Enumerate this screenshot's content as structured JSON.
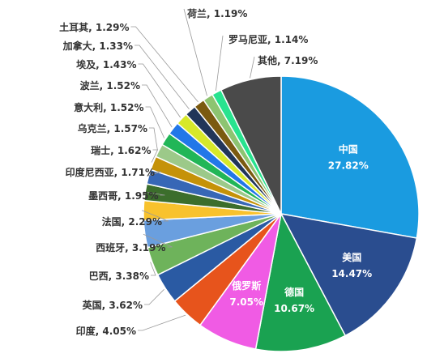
{
  "chart_data": {
    "type": "pie",
    "title": "",
    "legend": "none",
    "value_unit": "%",
    "slices": [
      {
        "name": "中国",
        "value": 27.82,
        "color": "#1a9be0",
        "label_pos": "inside"
      },
      {
        "name": "美国",
        "value": 14.47,
        "color": "#2a4d8f",
        "label_pos": "inside"
      },
      {
        "name": "德国",
        "value": 10.67,
        "color": "#1aa251",
        "label_pos": "inside"
      },
      {
        "name": "俄罗斯",
        "value": 7.05,
        "color": "#f05be4",
        "label_pos": "inside"
      },
      {
        "name": "印度",
        "value": 4.05,
        "color": "#e7541c",
        "label_pos": "outside"
      },
      {
        "name": "英国",
        "value": 3.62,
        "color": "#2a5aa3",
        "label_pos": "outside"
      },
      {
        "name": "巴西",
        "value": 3.38,
        "color": "#6eb35b",
        "label_pos": "outside"
      },
      {
        "name": "西班牙",
        "value": 3.19,
        "color": "#6a9fdf",
        "label_pos": "outside"
      },
      {
        "name": "法国",
        "value": 2.29,
        "color": "#f8c22d",
        "label_pos": "outside"
      },
      {
        "name": "墨西哥",
        "value": 1.95,
        "color": "#3c6e2c",
        "label_pos": "outside"
      },
      {
        "name": "印度尼西亚",
        "value": 1.71,
        "color": "#3767b6",
        "label_pos": "outside"
      },
      {
        "name": "瑞士",
        "value": 1.62,
        "color": "#c59208",
        "label_pos": "outside"
      },
      {
        "name": "乌克兰",
        "value": 1.57,
        "color": "#9cc989",
        "label_pos": "outside"
      },
      {
        "name": "意大利",
        "value": 1.52,
        "color": "#21b657",
        "label_pos": "outside"
      },
      {
        "name": "波兰",
        "value": 1.52,
        "color": "#2277e8",
        "label_pos": "outside"
      },
      {
        "name": "埃及",
        "value": 1.43,
        "color": "#d7e82a",
        "label_pos": "outside"
      },
      {
        "name": "加拿大",
        "value": 1.33,
        "color": "#213559",
        "label_pos": "outside"
      },
      {
        "name": "土耳其",
        "value": 1.29,
        "color": "#7b5a10",
        "label_pos": "outside"
      },
      {
        "name": "荷兰",
        "value": 1.19,
        "color": "#8dc471",
        "label_pos": "outside"
      },
      {
        "name": "罗马尼亚",
        "value": 1.14,
        "color": "#28e38f",
        "label_pos": "outside"
      },
      {
        "name": "其他",
        "value": 7.19,
        "color": "#4a4a4a",
        "label_pos": "outside"
      }
    ]
  }
}
